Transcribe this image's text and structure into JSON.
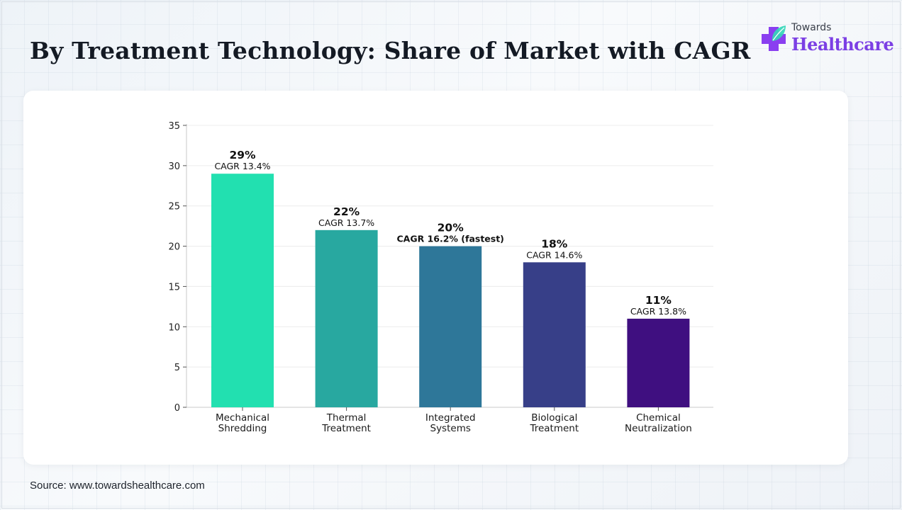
{
  "header": {
    "title": "By Treatment Technology: Share of Market with CAGR"
  },
  "logo": {
    "line1": "Towards",
    "line2": "Healthcare",
    "icon": "medical-cross-leaf-icon",
    "colors": {
      "text": "#7b3fe4",
      "cross": "#8a3ff0",
      "leaf": "#35d6b8"
    }
  },
  "footer": {
    "source": "Source: www.towardshealthcare.com"
  },
  "chart_data": {
    "type": "bar",
    "categories": [
      [
        "Mechanical",
        "Shredding"
      ],
      [
        "Thermal",
        "Treatment"
      ],
      [
        "Integrated",
        "Systems"
      ],
      [
        "Biological",
        "Treatment"
      ],
      [
        "Chemical",
        "Neutralization"
      ]
    ],
    "values": [
      29,
      22,
      20,
      18,
      11
    ],
    "value_labels": [
      "29%",
      "22%",
      "20%",
      "18%",
      "11%"
    ],
    "cagr_labels": [
      "CAGR 13.4%",
      "CAGR 13.7%",
      "CAGR 16.2% (fastest)",
      "CAGR 14.6%",
      "CAGR 13.8%"
    ],
    "emphasized_index": 2,
    "colors": [
      "#22e0b0",
      "#28a8a0",
      "#2e7799",
      "#373f88",
      "#3f0f80"
    ],
    "ylim": [
      0,
      35
    ],
    "yticks": [
      0,
      5,
      10,
      15,
      20,
      25,
      30,
      35
    ],
    "grid": true,
    "legend": "none",
    "title": "",
    "xlabel": "",
    "ylabel": ""
  }
}
